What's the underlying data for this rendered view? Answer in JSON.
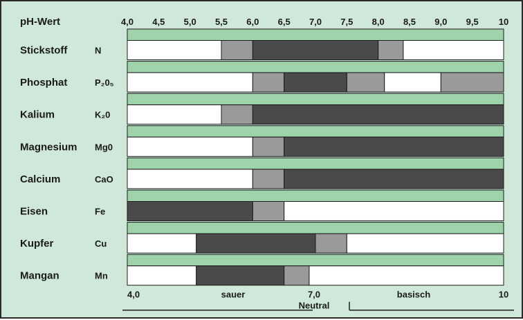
{
  "chart_data": {
    "type": "bar",
    "title": "pH-Wert",
    "x_ticks": [
      "4,0",
      "4,5",
      "5,0",
      "5,5",
      "6,0",
      "6,5",
      "7,0",
      "7,5",
      "8,0",
      "8,5",
      "9,0",
      "9,5",
      "10"
    ],
    "xlim": [
      4.0,
      10.0
    ],
    "legend": {
      "acid_label": "sauer",
      "neutral_label": "Neutral",
      "basic_label": "basisch",
      "start_label": "4,0",
      "mid_label": "7,0",
      "end_label": "10"
    },
    "colors": {
      "background": "#cfe8d9",
      "separator": "#9ed3ab",
      "none": "#ffffff",
      "medium": "#9a9a9a",
      "high": "#4a4a4a"
    },
    "rows": [
      {
        "name": "Stickstoff",
        "symbol": "N",
        "segments": [
          {
            "from": 4.0,
            "to": 5.5,
            "level": "none"
          },
          {
            "from": 5.5,
            "to": 6.0,
            "level": "medium"
          },
          {
            "from": 6.0,
            "to": 8.0,
            "level": "high"
          },
          {
            "from": 8.0,
            "to": 8.4,
            "level": "medium"
          },
          {
            "from": 8.4,
            "to": 10.0,
            "level": "none"
          }
        ]
      },
      {
        "name": "Phosphat",
        "symbol": "P₂0₅",
        "segments": [
          {
            "from": 4.0,
            "to": 6.0,
            "level": "none"
          },
          {
            "from": 6.0,
            "to": 6.5,
            "level": "medium"
          },
          {
            "from": 6.5,
            "to": 7.5,
            "level": "high"
          },
          {
            "from": 7.5,
            "to": 8.1,
            "level": "medium"
          },
          {
            "from": 8.1,
            "to": 9.0,
            "level": "none"
          },
          {
            "from": 9.0,
            "to": 10.0,
            "level": "medium"
          }
        ]
      },
      {
        "name": "Kalium",
        "symbol": "K₂0",
        "segments": [
          {
            "from": 4.0,
            "to": 5.5,
            "level": "none"
          },
          {
            "from": 5.5,
            "to": 6.0,
            "level": "medium"
          },
          {
            "from": 6.0,
            "to": 10.0,
            "level": "high"
          }
        ]
      },
      {
        "name": "Magnesium",
        "symbol": "Mg0",
        "segments": [
          {
            "from": 4.0,
            "to": 6.0,
            "level": "none"
          },
          {
            "from": 6.0,
            "to": 6.5,
            "level": "medium"
          },
          {
            "from": 6.5,
            "to": 10.0,
            "level": "high"
          }
        ]
      },
      {
        "name": "Calcium",
        "symbol": "CaO",
        "segments": [
          {
            "from": 4.0,
            "to": 6.0,
            "level": "none"
          },
          {
            "from": 6.0,
            "to": 6.5,
            "level": "medium"
          },
          {
            "from": 6.5,
            "to": 10.0,
            "level": "high"
          }
        ]
      },
      {
        "name": "Eisen",
        "symbol": "Fe",
        "segments": [
          {
            "from": 4.0,
            "to": 6.0,
            "level": "high"
          },
          {
            "from": 6.0,
            "to": 6.5,
            "level": "medium"
          },
          {
            "from": 6.5,
            "to": 10.0,
            "level": "none"
          }
        ]
      },
      {
        "name": "Kupfer",
        "symbol": "Cu",
        "segments": [
          {
            "from": 4.0,
            "to": 5.1,
            "level": "none"
          },
          {
            "from": 5.1,
            "to": 7.0,
            "level": "high"
          },
          {
            "from": 7.0,
            "to": 7.5,
            "level": "medium"
          },
          {
            "from": 7.5,
            "to": 10.0,
            "level": "none"
          }
        ]
      },
      {
        "name": "Mangan",
        "symbol": "Mn",
        "segments": [
          {
            "from": 4.0,
            "to": 5.1,
            "level": "none"
          },
          {
            "from": 5.1,
            "to": 6.5,
            "level": "high"
          },
          {
            "from": 6.5,
            "to": 6.9,
            "level": "medium"
          },
          {
            "from": 6.9,
            "to": 10.0,
            "level": "none"
          }
        ]
      }
    ]
  }
}
